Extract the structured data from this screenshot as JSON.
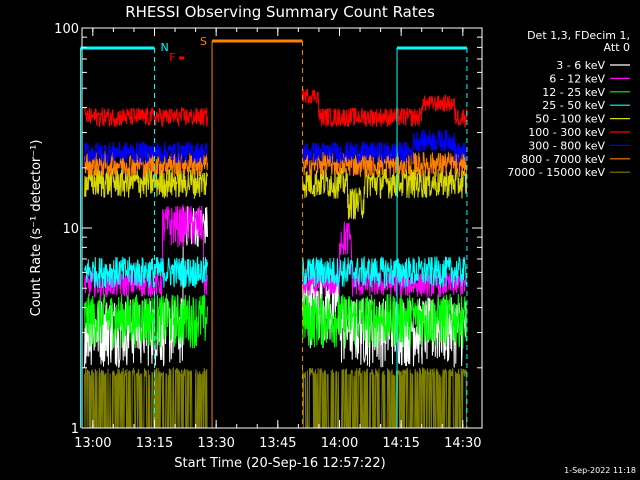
{
  "chart_data": {
    "type": "line",
    "title": "RHESSI Observing Summary Count Rates",
    "xlabel": "Start Time (20-Sep-16 12:57:22)",
    "ylabel": "Count Rate (s⁻¹ detector⁻¹)",
    "y_scale": "log",
    "ylim": [
      1,
      100
    ],
    "xlim_minutes": [
      "12:57:22",
      "14:34:40"
    ],
    "x_ticks": [
      "13:00",
      "13:15",
      "13:30",
      "13:45",
      "14:00",
      "14:15",
      "14:30"
    ],
    "y_ticks": [
      "1",
      "10",
      "100"
    ],
    "legend_header": [
      "Det 1,3, FDecim 1,",
      "Att 0"
    ],
    "legend_position": "right",
    "series": [
      {
        "name": "3 - 6 keV",
        "color": "#ffffff",
        "typical": 2.5
      },
      {
        "name": "6 - 12 keV",
        "color": "#ff00ff",
        "typical": 5
      },
      {
        "name": "12 - 25 keV",
        "color": "#00ff00",
        "typical": 3.5
      },
      {
        "name": "25 - 50 keV",
        "color": "#00ffff",
        "typical": 6
      },
      {
        "name": "50 - 100 keV",
        "color": "#d8d800",
        "typical": 16
      },
      {
        "name": "100 - 300 keV",
        "color": "#ff0000",
        "typical": 36
      },
      {
        "name": "300 - 800 keV",
        "color": "#0000ff",
        "typical": 25
      },
      {
        "name": "800 - 7000 keV",
        "color": "#ff8000",
        "typical": 21
      },
      {
        "name": "7000 - 15000 keV",
        "color": "#808000",
        "typical": 1.5
      }
    ],
    "data_gaps": [
      [
        "13:28",
        "13:51"
      ]
    ],
    "night_bars": [
      [
        "12:57",
        "13:15"
      ],
      [
        "14:14",
        "14:31"
      ]
    ],
    "saa_bar": [
      "13:29",
      "13:51"
    ],
    "flare_marker": "13:21",
    "annotations": {
      "night": "N",
      "saa": "S",
      "flare": "F"
    },
    "timestamp": "1-Sep-2022 11:18"
  },
  "colors": {
    "night": "#00ffff",
    "saa": "#ff8000",
    "flare": "#ff0000",
    "axes": "#ffffff"
  }
}
